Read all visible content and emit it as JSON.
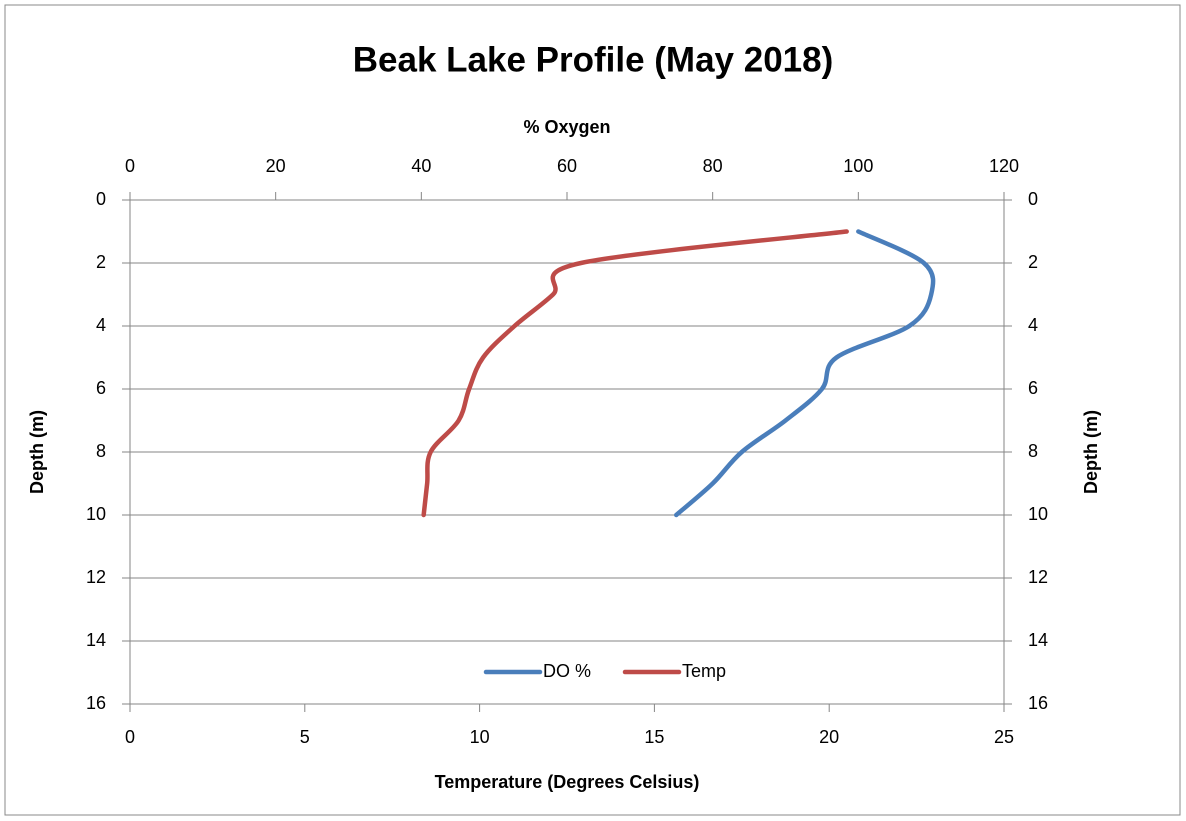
{
  "chart_data": {
    "type": "line",
    "title": "Beak Lake Profile (May 2018)",
    "x2_label": "% Oxygen",
    "x_label": "Temperature (Degrees Celsius)",
    "y_label": "Depth (m)",
    "depths": [
      1,
      2,
      3,
      4,
      5,
      6,
      7,
      8,
      9,
      10
    ],
    "series": [
      {
        "name": "DO %",
        "color": "#4a7ebb",
        "axis": "x2",
        "values": [
          100,
          109,
          110,
          107,
          97,
          95,
          90,
          84,
          80,
          75
        ]
      },
      {
        "name": "Temp",
        "color": "#be4b48",
        "axis": "x",
        "values": [
          20.5,
          12.9,
          12.1,
          11.0,
          10.1,
          9.7,
          9.4,
          8.6,
          8.5,
          8.4
        ]
      }
    ],
    "ylim": [
      0,
      16
    ],
    "yticks": [
      0,
      2,
      4,
      6,
      8,
      10,
      12,
      14,
      16
    ],
    "y_inverted": true,
    "xlim": [
      0,
      25
    ],
    "xticks": [
      0,
      5,
      10,
      15,
      20,
      25
    ],
    "x2lim": [
      0,
      120
    ],
    "x2ticks": [
      0,
      20,
      40,
      60,
      80,
      100,
      120
    ],
    "grid": true,
    "legend": "bottom"
  }
}
